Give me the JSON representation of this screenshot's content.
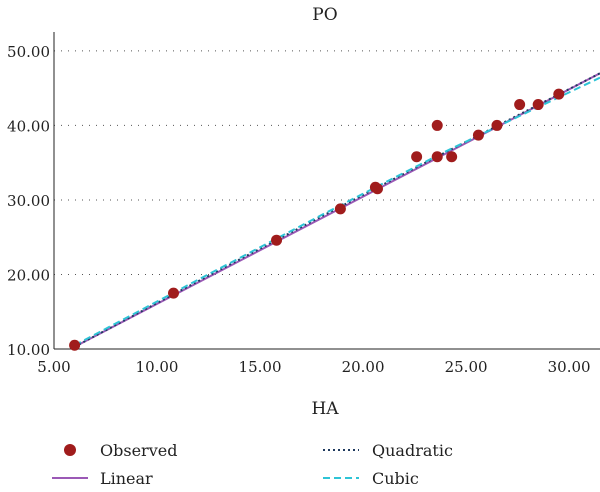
{
  "chart_data": {
    "type": "scatter",
    "title": "PO",
    "xlabel": "HA",
    "ylabel": "",
    "xlim": [
      5.0,
      31.5
    ],
    "ylim": [
      10.0,
      52.0
    ],
    "xticks": [
      5.0,
      10.0,
      15.0,
      20.0,
      25.0,
      30.0
    ],
    "yticks": [
      10.0,
      20.0,
      30.0,
      40.0,
      50.0
    ],
    "tick_labels_x": [
      "5.00",
      "10.00",
      "15.00",
      "20.00",
      "25.00",
      "30.00"
    ],
    "tick_labels_y": [
      "10.00",
      "20.00",
      "30.00",
      "40.00",
      "50.00"
    ],
    "grid": "horizontal-dotted",
    "legend_placement": "bottom",
    "colors": {
      "observed": "#a01c1c",
      "linear": "#9b59b6",
      "quadratic": "#1f3a5f",
      "cubic": "#2ec4d6"
    },
    "series": [
      {
        "name": "Observed",
        "kind": "points",
        "x": [
          6.0,
          10.8,
          15.8,
          18.9,
          20.6,
          20.7,
          22.6,
          23.6,
          23.6,
          24.3,
          25.6,
          26.5,
          27.6,
          28.5,
          29.5
        ],
        "y": [
          10.5,
          17.5,
          24.6,
          28.8,
          31.7,
          31.5,
          35.8,
          40.0,
          35.8,
          35.8,
          38.7,
          40.0,
          42.8,
          42.8,
          44.2
        ]
      },
      {
        "name": "Linear",
        "kind": "line",
        "x": [
          6.0,
          31.5
        ],
        "y": [
          10.3,
          47.0
        ]
      },
      {
        "name": "Quadratic",
        "kind": "line",
        "x": [
          6.0,
          12.0,
          18.0,
          24.0,
          31.5
        ],
        "y": [
          10.3,
          19.1,
          27.8,
          36.4,
          47.0
        ]
      },
      {
        "name": "Cubic",
        "kind": "line",
        "x": [
          6.0,
          12.0,
          18.0,
          24.0,
          28.0,
          31.5
        ],
        "y": [
          10.5,
          19.3,
          28.0,
          36.5,
          41.8,
          46.4
        ]
      }
    ]
  }
}
